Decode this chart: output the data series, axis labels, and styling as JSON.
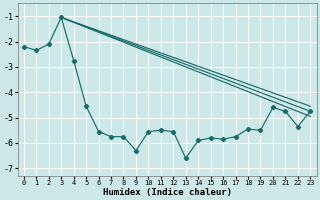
{
  "xlabel": "Humidex (Indice chaleur)",
  "background_color": "#cce8e8",
  "grid_color": "#ffffff",
  "line_color": "#1a6b6b",
  "xlim": [
    -0.5,
    23.5
  ],
  "ylim": [
    -7.3,
    -0.5
  ],
  "yticks": [
    -7,
    -6,
    -5,
    -4,
    -3,
    -2,
    -1
  ],
  "xticks": [
    0,
    1,
    2,
    3,
    4,
    5,
    6,
    7,
    8,
    9,
    10,
    11,
    12,
    13,
    14,
    15,
    16,
    17,
    18,
    19,
    20,
    21,
    22,
    23
  ],
  "line1_x": [
    0,
    1,
    2,
    3,
    4,
    5,
    6,
    7,
    8,
    9,
    10,
    11,
    12,
    13,
    14,
    15,
    16,
    17,
    18,
    19,
    20,
    21,
    22,
    23
  ],
  "line1_y": [
    -2.2,
    -2.35,
    -2.1,
    -1.05,
    -2.75,
    -4.55,
    -5.55,
    -5.75,
    -5.75,
    -6.3,
    -5.55,
    -5.5,
    -5.55,
    -6.6,
    -5.9,
    -5.8,
    -5.85,
    -5.75,
    -5.45,
    -5.5,
    -4.6,
    -4.75,
    -5.35,
    -4.75
  ],
  "line2_x": [
    3,
    23
  ],
  "line2_y": [
    -1.05,
    -4.55
  ],
  "line3_x": [
    3,
    23
  ],
  "line3_y": [
    -1.05,
    -4.75
  ],
  "line4_x": [
    3,
    23
  ],
  "line4_y": [
    -1.05,
    -4.95
  ]
}
